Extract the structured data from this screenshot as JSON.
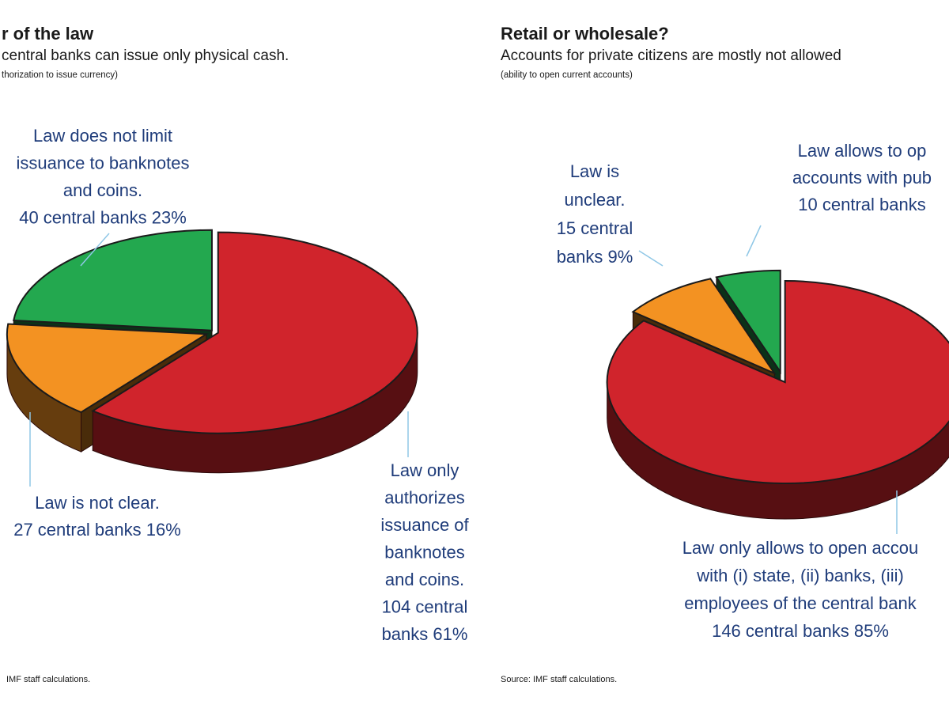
{
  "chart_data": [
    {
      "type": "pie",
      "title": "r of the law",
      "subtitle": "central banks can issue only physical cash.",
      "note": "thorization to issue currency)",
      "source": "IMF staff calculations.",
      "slices": [
        {
          "label": "Law only authorizes issuance of banknotes and coins.",
          "count": 104,
          "percent": 61,
          "color": "#d0242c",
          "label_lines": [
            "Law only",
            "authorizes",
            "issuance of",
            "banknotes",
            "and coins.",
            "104 central",
            "banks 61%"
          ]
        },
        {
          "label": "Law is not clear.",
          "count": 27,
          "percent": 16,
          "color": "#f39222",
          "label_lines": [
            "Law is not clear.",
            "27 central banks 16%"
          ]
        },
        {
          "label": "Law does not limit issuance to banknotes and coins.",
          "count": 40,
          "percent": 23,
          "color": "#23a84f",
          "label_lines": [
            "Law does not limit",
            "issuance to banknotes",
            "and coins.",
            "40 central banks 23%"
          ]
        }
      ]
    },
    {
      "type": "pie",
      "title": "Retail or wholesale?",
      "subtitle": "Accounts for private citizens are mostly not allowed",
      "note": "(ability to open current accounts)",
      "source": "Source: IMF staff calculations.",
      "slices": [
        {
          "label": "Law only allows to open accounts with (i) state, (ii) banks, (iii) employees of the central bank",
          "count": 146,
          "percent": 85,
          "color": "#d0242c",
          "label_lines": [
            "Law only allows to open accou",
            "with (i) state, (ii) banks, (iii)",
            "employees of the central bank",
            "146 central banks 85%"
          ]
        },
        {
          "label": "Law is unclear.",
          "count": 15,
          "percent": 9,
          "color": "#f39222",
          "label_lines": [
            "Law is",
            "unclear.",
            "15 central",
            "banks 9%"
          ]
        },
        {
          "label": "Law allows to open accounts with public",
          "count": 10,
          "percent": 6,
          "color": "#23a84f",
          "label_lines": [
            "Law allows to op",
            "accounts with pub",
            "10 central banks"
          ]
        }
      ]
    }
  ]
}
